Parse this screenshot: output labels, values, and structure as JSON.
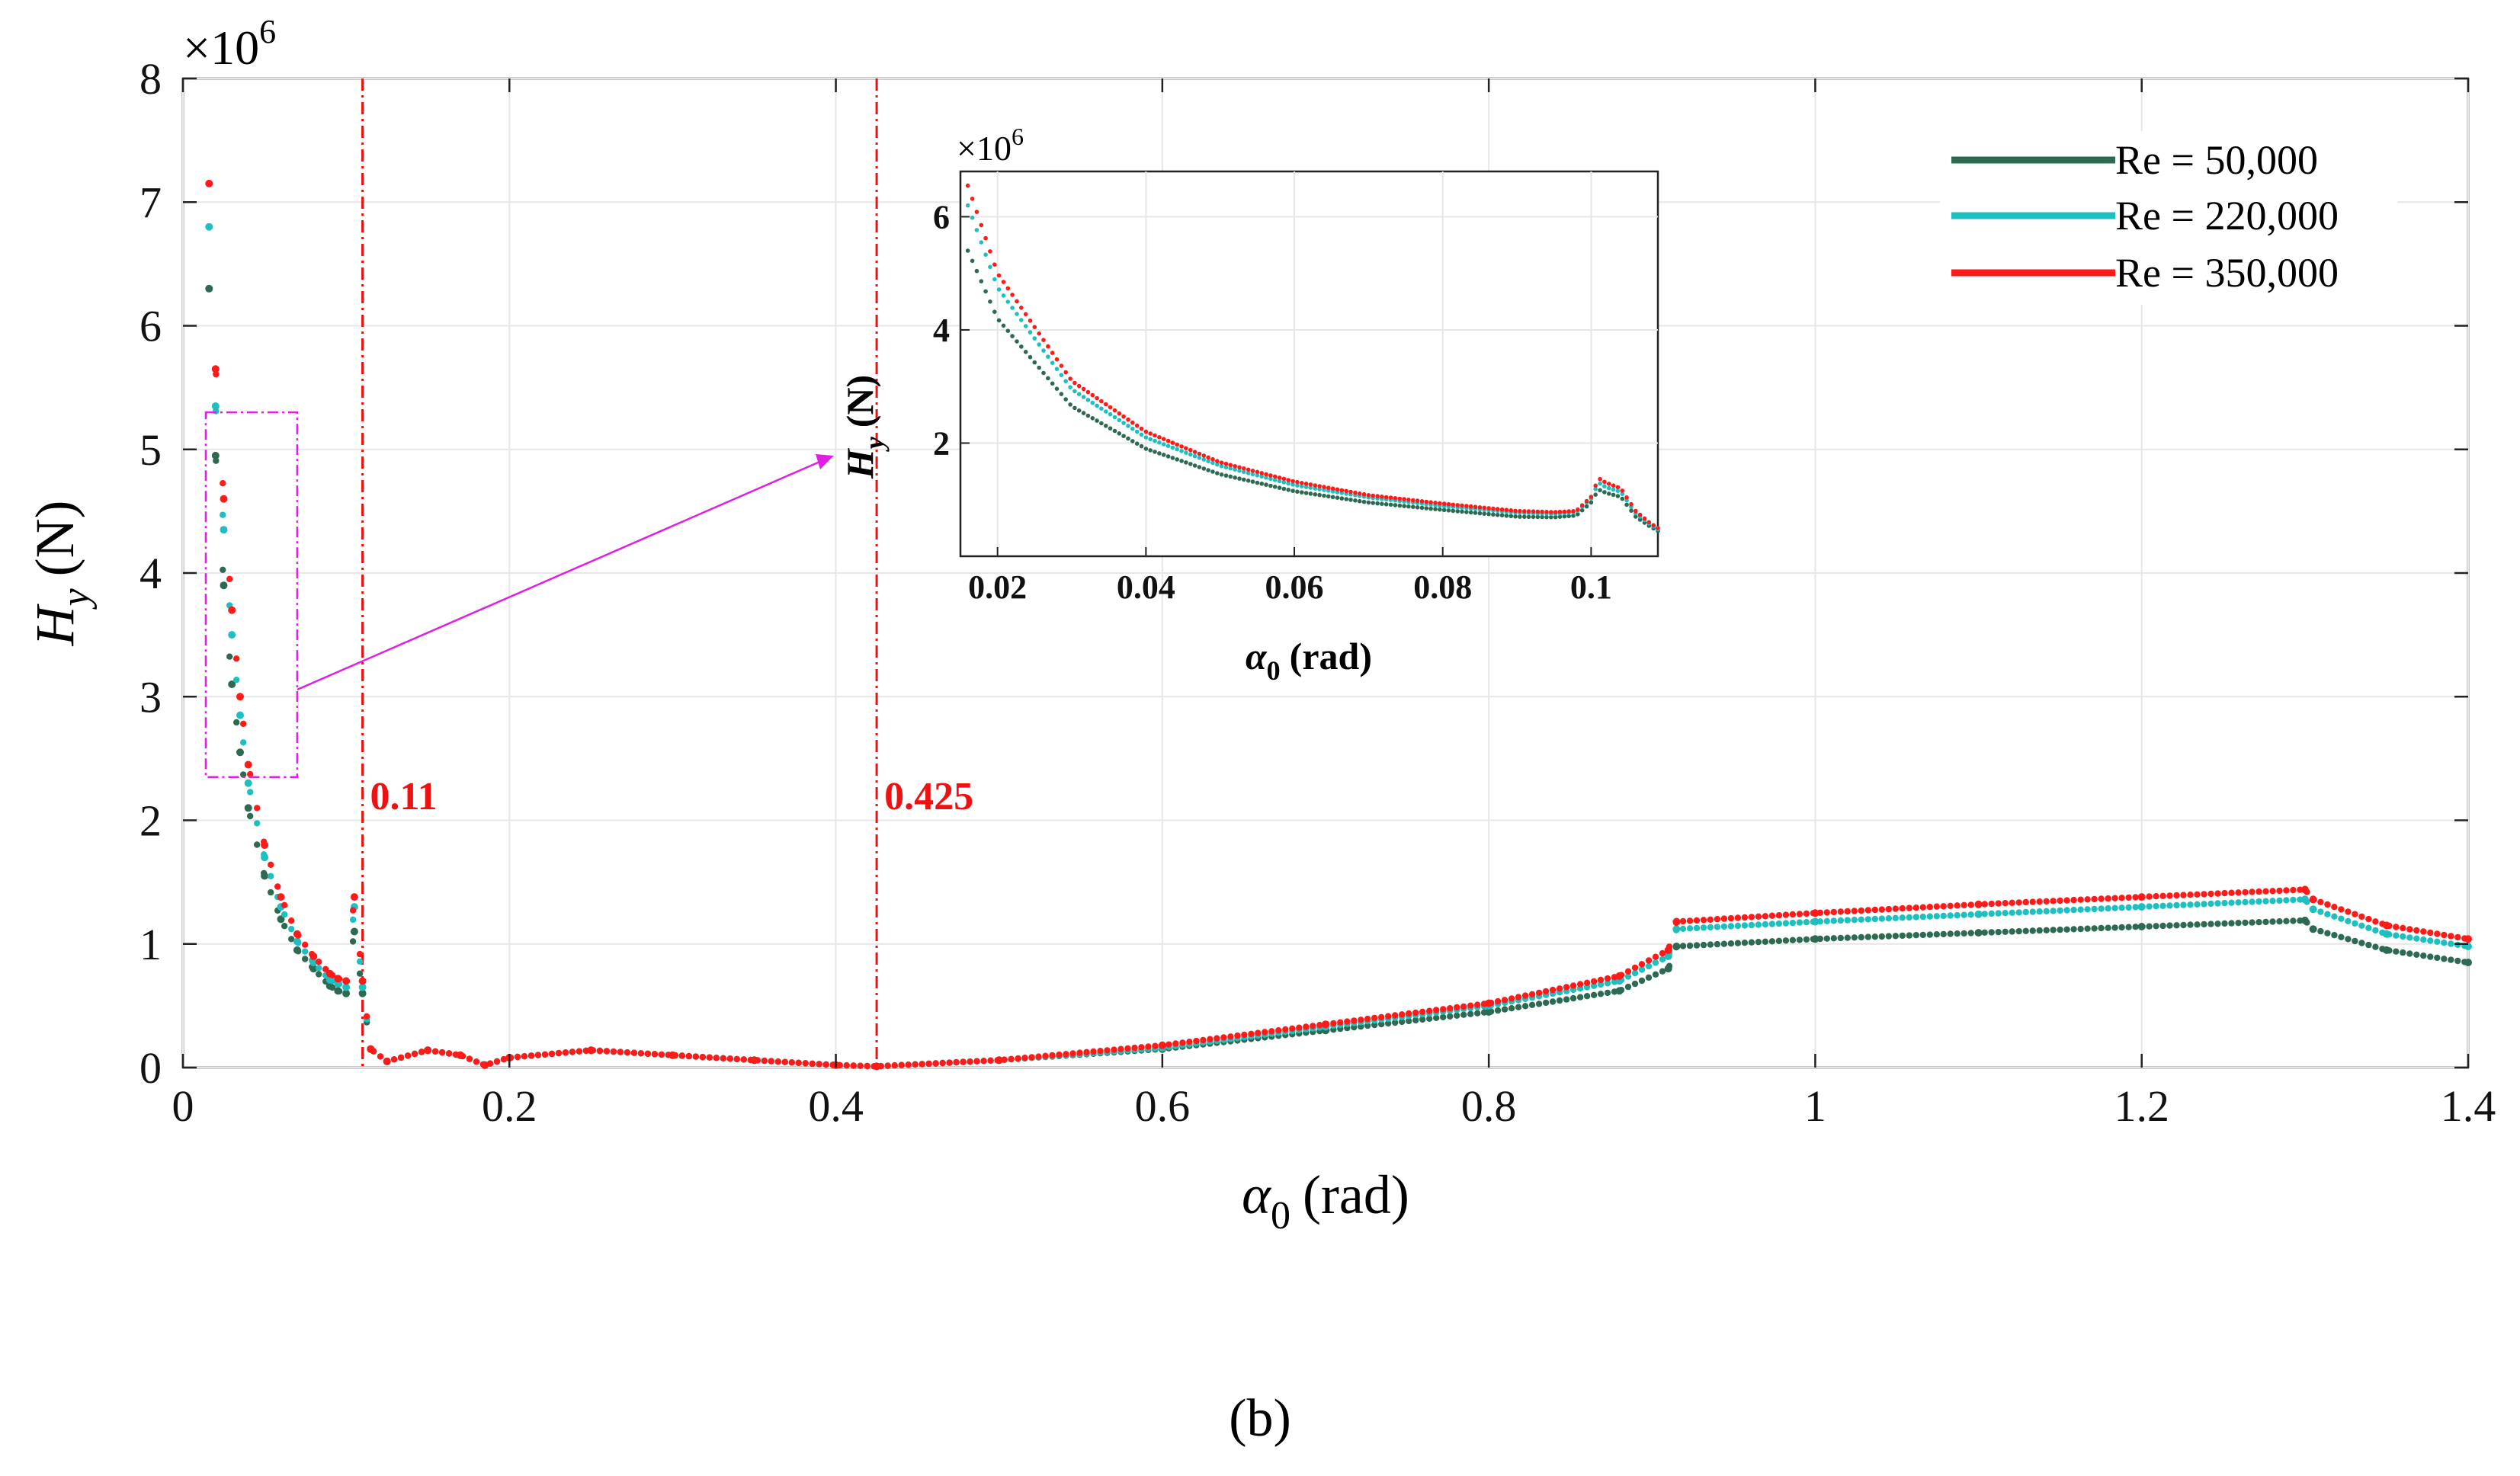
{
  "chart_data": {
    "type": "scatter",
    "title": "",
    "xlabel_symbol": "α",
    "xlabel_sub": "0",
    "xlabel_unit": "(rad)",
    "ylabel_symbol": "H",
    "ylabel_sub": "y",
    "ylabel_unit": "(N)",
    "exponent_label": "×10",
    "exponent_power": "6",
    "xlim": [
      0,
      1.4
    ],
    "ylim": [
      0,
      8
    ],
    "xticks": [
      0,
      0.2,
      0.4,
      0.6,
      0.8,
      1,
      1.2,
      1.4
    ],
    "xtick_labels": [
      "0",
      "0.2",
      "0.4",
      "0.6",
      "0.8",
      "1",
      "1.2",
      "1.4"
    ],
    "yticks": [
      0,
      1,
      2,
      3,
      4,
      5,
      6,
      7,
      8
    ],
    "ytick_labels": [
      "0",
      "1",
      "2",
      "3",
      "4",
      "5",
      "6",
      "7",
      "8"
    ],
    "grid": true,
    "legend_position": "top-right",
    "units_note": "y values in units of 10^6 N",
    "series": [
      {
        "name": "Re = 50,000",
        "color": "#2e6a52",
        "x": [
          0.016,
          0.02,
          0.025,
          0.03,
          0.035,
          0.04,
          0.05,
          0.06,
          0.07,
          0.08,
          0.09,
          0.095,
          0.1,
          0.105,
          0.11,
          0.115,
          0.125,
          0.15,
          0.17,
          0.185,
          0.2,
          0.25,
          0.3,
          0.35,
          0.4,
          0.425,
          0.5,
          0.6,
          0.7,
          0.8,
          0.88,
          0.91,
          0.915,
          1.0,
          1.1,
          1.2,
          1.3,
          1.305,
          1.35,
          1.4
        ],
        "values": [
          6.3,
          4.95,
          3.9,
          3.1,
          2.55,
          2.1,
          1.55,
          1.2,
          0.95,
          0.8,
          0.66,
          0.62,
          0.6,
          1.1,
          0.6,
          0.15,
          0.05,
          0.14,
          0.1,
          0.02,
          0.08,
          0.14,
          0.1,
          0.06,
          0.02,
          0.01,
          0.06,
          0.15,
          0.3,
          0.45,
          0.62,
          0.8,
          0.98,
          1.04,
          1.09,
          1.14,
          1.19,
          1.12,
          0.95,
          0.85
        ]
      },
      {
        "name": "Re = 220,000",
        "color": "#1fbfc0",
        "x": [
          0.016,
          0.02,
          0.025,
          0.03,
          0.035,
          0.04,
          0.05,
          0.06,
          0.07,
          0.08,
          0.09,
          0.095,
          0.1,
          0.105,
          0.11,
          0.115,
          0.125,
          0.15,
          0.17,
          0.185,
          0.2,
          0.25,
          0.3,
          0.35,
          0.4,
          0.425,
          0.5,
          0.6,
          0.7,
          0.8,
          0.88,
          0.91,
          0.915,
          1.0,
          1.1,
          1.2,
          1.3,
          1.305,
          1.35,
          1.4
        ],
        "values": [
          6.8,
          5.35,
          4.35,
          3.5,
          2.85,
          2.3,
          1.7,
          1.3,
          1.02,
          0.85,
          0.71,
          0.68,
          0.65,
          1.3,
          0.65,
          0.15,
          0.05,
          0.14,
          0.1,
          0.02,
          0.08,
          0.14,
          0.1,
          0.06,
          0.02,
          0.01,
          0.06,
          0.16,
          0.33,
          0.5,
          0.7,
          0.9,
          1.12,
          1.18,
          1.24,
          1.3,
          1.36,
          1.28,
          1.08,
          0.98
        ]
      },
      {
        "name": "Re = 350,000",
        "color": "#ff1a1a",
        "x": [
          0.016,
          0.02,
          0.025,
          0.03,
          0.035,
          0.04,
          0.05,
          0.06,
          0.07,
          0.08,
          0.09,
          0.095,
          0.1,
          0.105,
          0.11,
          0.115,
          0.125,
          0.15,
          0.17,
          0.185,
          0.2,
          0.25,
          0.3,
          0.35,
          0.4,
          0.425,
          0.5,
          0.6,
          0.7,
          0.8,
          0.88,
          0.91,
          0.915,
          1.0,
          1.1,
          1.2,
          1.3,
          1.305,
          1.35,
          1.4
        ],
        "values": [
          7.15,
          5.65,
          4.6,
          3.7,
          3.0,
          2.45,
          1.8,
          1.38,
          1.08,
          0.9,
          0.76,
          0.72,
          0.7,
          1.38,
          0.7,
          0.15,
          0.05,
          0.14,
          0.1,
          0.02,
          0.08,
          0.14,
          0.1,
          0.06,
          0.02,
          0.01,
          0.06,
          0.18,
          0.35,
          0.52,
          0.74,
          0.95,
          1.18,
          1.25,
          1.32,
          1.38,
          1.44,
          1.36,
          1.15,
          1.04
        ]
      }
    ],
    "vlines": [
      {
        "x": 0.11,
        "label": "0.11",
        "color": "#ee1111"
      },
      {
        "x": 0.425,
        "label": "0.425",
        "color": "#ee1111"
      }
    ],
    "zoom_box": {
      "xlim": [
        0.014,
        0.07
      ],
      "ylim": [
        2.35,
        5.3
      ],
      "color": "#e020e0"
    },
    "inset": {
      "xlim": [
        0.015,
        0.109
      ],
      "ylim": [
        0,
        6.8
      ],
      "xticks": [
        0.02,
        0.04,
        0.06,
        0.08,
        0.1
      ],
      "xtick_labels": [
        "0.02",
        "0.04",
        "0.06",
        "0.08",
        "0.1"
      ],
      "yticks": [
        2,
        4,
        6
      ],
      "ytick_labels": [
        "2",
        "4",
        "6"
      ],
      "xlabel_symbol": "α",
      "xlabel_sub": "0",
      "xlabel_unit": "(rad)",
      "ylabel_symbol": "H",
      "ylabel_sub": "y",
      "ylabel_unit": "(N)",
      "exponent_label": "×10",
      "exponent_power": "6",
      "series": [
        {
          "name": "Re = 50,000",
          "color": "#2e6a52",
          "x": [
            0.016,
            0.02,
            0.03,
            0.04,
            0.05,
            0.06,
            0.07,
            0.08,
            0.09,
            0.095,
            0.098,
            0.1,
            0.101,
            0.102,
            0.104,
            0.106,
            0.108,
            0.109
          ],
          "values": [
            5.4,
            4.2,
            2.65,
            1.9,
            1.45,
            1.15,
            0.95,
            0.82,
            0.7,
            0.69,
            0.72,
            0.95,
            1.18,
            1.12,
            1.05,
            0.7,
            0.52,
            0.45
          ]
        },
        {
          "name": "Re = 220,000",
          "color": "#1fbfc0",
          "x": [
            0.016,
            0.02,
            0.03,
            0.04,
            0.05,
            0.06,
            0.07,
            0.08,
            0.09,
            0.095,
            0.098,
            0.1,
            0.101,
            0.102,
            0.104,
            0.106,
            0.108,
            0.109
          ],
          "values": [
            6.2,
            4.75,
            2.95,
            2.1,
            1.6,
            1.26,
            1.04,
            0.89,
            0.77,
            0.75,
            0.78,
            1.02,
            1.3,
            1.22,
            1.14,
            0.76,
            0.56,
            0.48
          ]
        },
        {
          "name": "Re = 350,000",
          "color": "#ff1a1a",
          "x": [
            0.016,
            0.02,
            0.03,
            0.04,
            0.05,
            0.06,
            0.07,
            0.08,
            0.09,
            0.095,
            0.098,
            0.1,
            0.101,
            0.102,
            0.104,
            0.106,
            0.108,
            0.109
          ],
          "values": [
            6.55,
            5.0,
            3.1,
            2.2,
            1.66,
            1.32,
            1.08,
            0.93,
            0.8,
            0.78,
            0.8,
            1.05,
            1.38,
            1.3,
            1.2,
            0.8,
            0.58,
            0.5
          ]
        }
      ]
    }
  },
  "caption": "(b)"
}
